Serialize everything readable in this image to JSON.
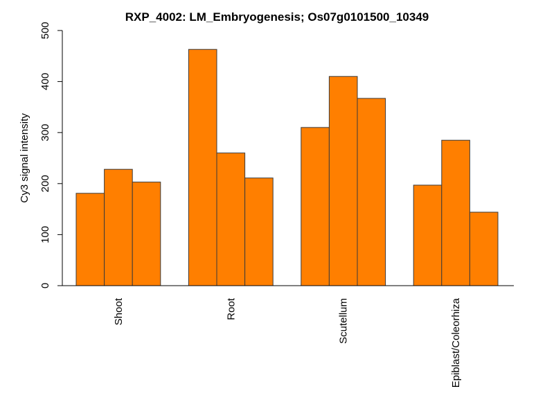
{
  "chart_data": {
    "type": "bar",
    "title": "RXP_4002: LM_Embryogenesis; Os07g0101500_10349",
    "xlabel": "",
    "ylabel": "Cy3 signal intensity",
    "ylim": [
      0,
      500
    ],
    "yticks": [
      0,
      100,
      200,
      300,
      400,
      500
    ],
    "categories": [
      "Shoot",
      "Root",
      "Scutellum",
      "Epiblast/Coleorhiza"
    ],
    "values": [
      [
        181,
        228,
        203
      ],
      [
        463,
        260,
        211
      ],
      [
        310,
        410,
        367
      ],
      [
        197,
        285,
        144
      ]
    ],
    "bar_color": "#ff7f00",
    "grid": false,
    "legend": "none"
  }
}
